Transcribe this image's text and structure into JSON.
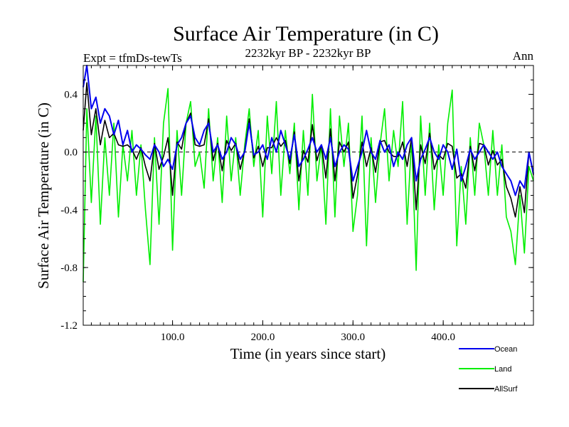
{
  "chart_data": {
    "type": "line",
    "title": "Surface Air Temperature (in C)",
    "subtitle": "2232kyr BP - 2232kyr BP",
    "left_label": "Expt = tfmDs-tewTs",
    "right_label": "Ann",
    "xlabel": "Time (in years since start)",
    "ylabel": "Surface Air Temperature (in C)",
    "xlim": [
      1,
      500
    ],
    "ylim": [
      -1.2,
      0.6
    ],
    "x_ticks": [
      100,
      200,
      300,
      400
    ],
    "x_tick_labels": [
      "100.0",
      "200.0",
      "300.0",
      "400.0"
    ],
    "y_ticks": [
      -1.2,
      -0.8,
      -0.4,
      0.0,
      0.4
    ],
    "y_tick_labels": [
      "-1.2",
      "-0.8",
      "-0.4",
      "0.0",
      "0.4"
    ],
    "zero_line": 0.0,
    "legend": [
      "Ocean",
      "Land",
      "AllSurf"
    ],
    "series": [
      {
        "name": "Ocean",
        "color": "#0000ee",
        "x": [
          1,
          5,
          10,
          15,
          20,
          25,
          30,
          35,
          40,
          45,
          50,
          55,
          60,
          65,
          70,
          75,
          80,
          85,
          90,
          95,
          100,
          105,
          110,
          115,
          120,
          125,
          130,
          135,
          140,
          145,
          150,
          155,
          160,
          165,
          170,
          175,
          180,
          185,
          190,
          195,
          200,
          205,
          210,
          215,
          220,
          225,
          230,
          235,
          240,
          245,
          250,
          255,
          260,
          265,
          270,
          275,
          280,
          285,
          290,
          295,
          300,
          305,
          310,
          315,
          320,
          325,
          330,
          335,
          340,
          345,
          350,
          355,
          360,
          365,
          370,
          375,
          380,
          385,
          390,
          395,
          400,
          405,
          410,
          415,
          420,
          425,
          430,
          435,
          440,
          445,
          450,
          455,
          460,
          465,
          470,
          475,
          480,
          485,
          490,
          495,
          500
        ],
        "values": [
          0.45,
          0.6,
          0.3,
          0.38,
          0.2,
          0.3,
          0.25,
          0.12,
          0.22,
          0.05,
          0.15,
          0.0,
          0.05,
          0.02,
          -0.02,
          -0.05,
          0.05,
          0.0,
          -0.1,
          -0.05,
          -0.12,
          0.05,
          0.1,
          0.2,
          0.25,
          0.1,
          0.05,
          0.15,
          0.2,
          0.0,
          0.05,
          -0.05,
          0.0,
          0.1,
          0.05,
          -0.05,
          0.0,
          0.2,
          -0.02,
          0.0,
          0.05,
          -0.05,
          0.1,
          0.0,
          0.15,
          0.05,
          -0.05,
          0.12,
          -0.1,
          -0.05,
          0.02,
          0.1,
          0.0,
          0.05,
          -0.05,
          0.1,
          -0.1,
          0.0,
          0.05,
          0.02,
          -0.2,
          -0.1,
          0.0,
          0.15,
          0.0,
          -0.05,
          0.08,
          0.0,
          0.05,
          -0.1,
          0.0,
          -0.05,
          0.05,
          0.1,
          -0.2,
          -0.05,
          0.02,
          0.1,
          0.0,
          -0.05,
          0.05,
          0.0,
          -0.12,
          0.02,
          -0.2,
          -0.1,
          0.02,
          -0.05,
          0.0,
          0.05,
          0.0,
          -0.05,
          0.0,
          -0.1,
          -0.15,
          -0.2,
          -0.3,
          -0.2,
          -0.25,
          0.0,
          -0.15
        ]
      },
      {
        "name": "Land",
        "color": "#00ee00",
        "x": [
          1,
          5,
          10,
          15,
          20,
          25,
          30,
          35,
          40,
          45,
          50,
          55,
          60,
          65,
          70,
          75,
          80,
          85,
          90,
          95,
          100,
          105,
          110,
          115,
          120,
          125,
          130,
          135,
          140,
          145,
          150,
          155,
          160,
          165,
          170,
          175,
          180,
          185,
          190,
          195,
          200,
          205,
          210,
          215,
          220,
          225,
          230,
          235,
          240,
          245,
          250,
          255,
          260,
          265,
          270,
          275,
          280,
          285,
          290,
          295,
          300,
          305,
          310,
          315,
          320,
          325,
          330,
          335,
          340,
          345,
          350,
          355,
          360,
          365,
          370,
          375,
          380,
          385,
          390,
          395,
          400,
          405,
          410,
          415,
          420,
          425,
          430,
          435,
          440,
          445,
          450,
          455,
          460,
          465,
          470,
          475,
          480,
          485,
          490,
          495,
          500
        ],
        "values": [
          -0.9,
          0.3,
          -0.35,
          0.25,
          -0.5,
          0.1,
          -0.3,
          0.2,
          -0.45,
          0.05,
          -0.2,
          0.15,
          -0.3,
          0.05,
          -0.4,
          -0.78,
          0.1,
          -0.5,
          0.2,
          0.44,
          -0.68,
          0.15,
          -0.3,
          0.2,
          0.35,
          -0.1,
          0.0,
          -0.25,
          0.3,
          -0.2,
          0.1,
          -0.35,
          0.25,
          -0.2,
          0.1,
          -0.3,
          0.05,
          0.3,
          -0.1,
          0.15,
          -0.45,
          0.25,
          -0.15,
          0.35,
          -0.3,
          0.15,
          -0.15,
          0.2,
          -0.4,
          0.15,
          -0.3,
          0.4,
          -0.2,
          0.05,
          -0.5,
          0.3,
          -0.45,
          0.25,
          -0.1,
          0.2,
          -0.55,
          -0.3,
          0.25,
          -0.65,
          0.1,
          -0.35,
          0.05,
          0.3,
          -0.2,
          0.15,
          -0.1,
          0.35,
          -0.5,
          0.1,
          -0.82,
          0.25,
          -0.3,
          0.2,
          -0.4,
          0.05,
          -0.3,
          0.2,
          0.43,
          -0.65,
          -0.1,
          -0.5,
          0.1,
          -0.3,
          0.2,
          0.05,
          -0.3,
          0.15,
          -0.3,
          0.05,
          -0.45,
          -0.55,
          -0.78,
          -0.3,
          -0.7,
          -0.1,
          -0.2
        ]
      },
      {
        "name": "AllSurf",
        "color": "#000000",
        "x": [
          1,
          5,
          10,
          15,
          20,
          25,
          30,
          35,
          40,
          45,
          50,
          55,
          60,
          65,
          70,
          75,
          80,
          85,
          90,
          95,
          100,
          105,
          110,
          115,
          120,
          125,
          130,
          135,
          140,
          145,
          150,
          155,
          160,
          165,
          170,
          175,
          180,
          185,
          190,
          195,
          200,
          205,
          210,
          215,
          220,
          225,
          230,
          235,
          240,
          245,
          250,
          255,
          260,
          265,
          270,
          275,
          280,
          285,
          290,
          295,
          300,
          305,
          310,
          315,
          320,
          325,
          330,
          335,
          340,
          345,
          350,
          355,
          360,
          365,
          370,
          375,
          380,
          385,
          390,
          395,
          400,
          405,
          410,
          415,
          420,
          425,
          430,
          435,
          440,
          445,
          450,
          455,
          460,
          465,
          470,
          475,
          480,
          485,
          490,
          495,
          500
        ],
        "values": [
          0.15,
          0.48,
          0.12,
          0.3,
          0.05,
          0.22,
          0.1,
          0.13,
          0.05,
          0.04,
          0.05,
          0.02,
          -0.05,
          0.03,
          -0.1,
          -0.2,
          0.06,
          -0.12,
          -0.03,
          0.1,
          -0.3,
          0.07,
          0.02,
          0.2,
          0.27,
          0.05,
          0.04,
          0.05,
          0.23,
          -0.06,
          0.06,
          -0.13,
          0.08,
          0.01,
          0.06,
          -0.12,
          0.01,
          0.23,
          -0.04,
          0.04,
          -0.1,
          0.03,
          0.03,
          0.1,
          0.04,
          0.08,
          -0.08,
          0.14,
          -0.2,
          0.01,
          -0.07,
          0.19,
          -0.06,
          0.05,
          -0.18,
          0.16,
          -0.2,
          0.07,
          0.0,
          0.07,
          -0.32,
          -0.16,
          0.07,
          -0.1,
          0.03,
          -0.14,
          0.07,
          0.08,
          0.0,
          -0.03,
          -0.03,
          0.07,
          -0.1,
          0.1,
          -0.4,
          0.05,
          -0.08,
          0.13,
          -0.12,
          -0.02,
          -0.05,
          0.06,
          0.04,
          -0.18,
          -0.15,
          -0.25,
          0.04,
          -0.13,
          0.06,
          0.05,
          -0.09,
          0.01,
          -0.09,
          -0.05,
          -0.24,
          -0.32,
          -0.45,
          -0.24,
          -0.42,
          0.0,
          -0.16
        ]
      }
    ]
  }
}
